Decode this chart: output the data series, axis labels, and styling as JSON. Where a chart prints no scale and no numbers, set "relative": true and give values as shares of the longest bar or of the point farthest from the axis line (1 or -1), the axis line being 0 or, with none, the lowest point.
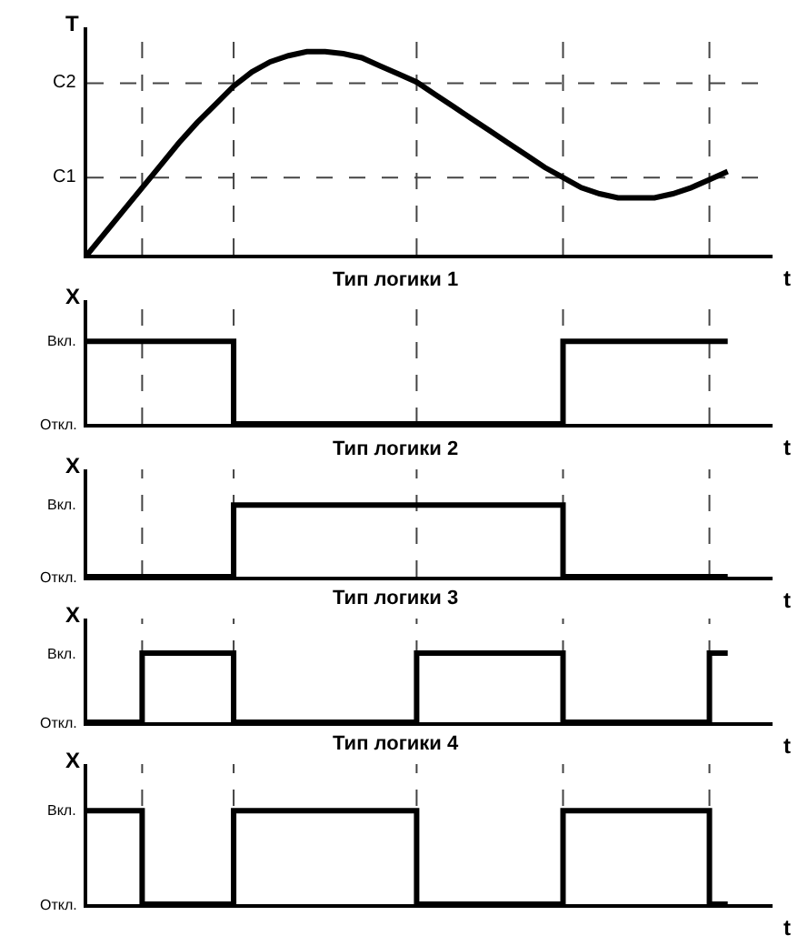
{
  "chart_data": [
    {
      "type": "line",
      "relative": true,
      "ylabel": "T",
      "xlabel": "t",
      "color": "#000000",
      "grid": "x",
      "categories": [
        null,
        null,
        null,
        null,
        null,
        null,
        null,
        null,
        null,
        null,
        null,
        null,
        null,
        null,
        null,
        null,
        null,
        null,
        null,
        null,
        null,
        null,
        null,
        null,
        null,
        null,
        null,
        null,
        null,
        null,
        null,
        null,
        null,
        null,
        null,
        null
      ],
      "values": [
        0,
        0.11,
        0.22,
        0.33,
        0.44,
        0.55,
        0.65,
        0.74,
        0.83,
        0.9,
        0.95,
        0.98,
        1.0,
        1.0,
        0.99,
        0.97,
        0.93,
        0.89,
        0.85,
        0.79,
        0.73,
        0.67,
        0.61,
        0.55,
        0.49,
        0.43,
        0.38,
        0.33,
        0.3,
        0.28,
        0.28,
        0.28,
        0.3,
        0.33,
        0.37,
        0.41
      ],
      "ref_lines": [
        {
          "axis": "y",
          "value": 0.38,
          "label": "C1",
          "line_style": "dashed"
        },
        {
          "axis": "y",
          "value": 0.845,
          "label": "C2",
          "line_style": "dashed"
        }
      ]
    },
    {
      "type": "step",
      "relative": true,
      "title": "Тип логики 1",
      "ylabel": "X",
      "xlabel": "t",
      "color": "#000000",
      "grid": "x",
      "categories": [
        null,
        null,
        null,
        null,
        null,
        null,
        null,
        null,
        null,
        null,
        null,
        null,
        null,
        null,
        null,
        null,
        null,
        null,
        null,
        null,
        null,
        null,
        null,
        null,
        null,
        null,
        null,
        null,
        null,
        null,
        null,
        null,
        null,
        null,
        null,
        null
      ],
      "values": [
        1,
        1,
        1,
        1,
        1,
        1,
        1,
        1,
        0,
        0,
        0,
        0,
        0,
        0,
        0,
        0,
        0,
        0,
        0,
        0,
        0,
        0,
        0,
        0,
        0,
        0,
        1,
        1,
        1,
        1,
        1,
        1,
        1,
        1,
        1,
        1
      ],
      "annotations": [
        "Вкл.",
        "Откл."
      ]
    },
    {
      "type": "step",
      "relative": true,
      "title": "Тип логики 2",
      "ylabel": "X",
      "xlabel": "t",
      "color": "#000000",
      "grid": "x",
      "categories": [
        null,
        null,
        null,
        null,
        null,
        null,
        null,
        null,
        null,
        null,
        null,
        null,
        null,
        null,
        null,
        null,
        null,
        null,
        null,
        null,
        null,
        null,
        null,
        null,
        null,
        null,
        null,
        null,
        null,
        null,
        null,
        null,
        null,
        null,
        null,
        null
      ],
      "values": [
        0,
        0,
        0,
        0,
        0,
        0,
        0,
        0,
        1,
        1,
        1,
        1,
        1,
        1,
        1,
        1,
        1,
        1,
        1,
        1,
        1,
        1,
        1,
        1,
        1,
        1,
        0,
        0,
        0,
        0,
        0,
        0,
        0,
        0,
        0,
        0
      ],
      "annotations": [
        "Вкл.",
        "Откл."
      ]
    },
    {
      "type": "step",
      "relative": true,
      "title": "Тип логики 3",
      "ylabel": "X",
      "xlabel": "t",
      "color": "#000000",
      "grid": "x",
      "categories": [
        null,
        null,
        null,
        null,
        null,
        null,
        null,
        null,
        null,
        null,
        null,
        null,
        null,
        null,
        null,
        null,
        null,
        null,
        null,
        null,
        null,
        null,
        null,
        null,
        null,
        null,
        null,
        null,
        null,
        null,
        null,
        null,
        null,
        null,
        null,
        null
      ],
      "values": [
        0,
        0,
        0,
        1,
        1,
        1,
        1,
        1,
        0,
        0,
        0,
        0,
        0,
        0,
        0,
        0,
        0,
        0,
        1,
        1,
        1,
        1,
        1,
        1,
        1,
        1,
        0,
        0,
        0,
        0,
        0,
        0,
        0,
        0,
        1,
        1
      ],
      "annotations": [
        "Вкл.",
        "Откл."
      ]
    },
    {
      "type": "step",
      "relative": true,
      "title": "Тип логики 4",
      "ylabel": "X",
      "xlabel": "t",
      "color": "#000000",
      "grid": "x",
      "categories": [
        null,
        null,
        null,
        null,
        null,
        null,
        null,
        null,
        null,
        null,
        null,
        null,
        null,
        null,
        null,
        null,
        null,
        null,
        null,
        null,
        null,
        null,
        null,
        null,
        null,
        null,
        null,
        null,
        null,
        null,
        null,
        null,
        null,
        null,
        null,
        null
      ],
      "values": [
        1,
        1,
        1,
        0,
        0,
        0,
        0,
        0,
        1,
        1,
        1,
        1,
        1,
        1,
        1,
        1,
        1,
        1,
        0,
        0,
        0,
        0,
        0,
        0,
        0,
        0,
        1,
        1,
        1,
        1,
        1,
        1,
        1,
        1,
        0,
        0
      ],
      "annotations": [
        "Вкл.",
        "Откл."
      ]
    }
  ]
}
